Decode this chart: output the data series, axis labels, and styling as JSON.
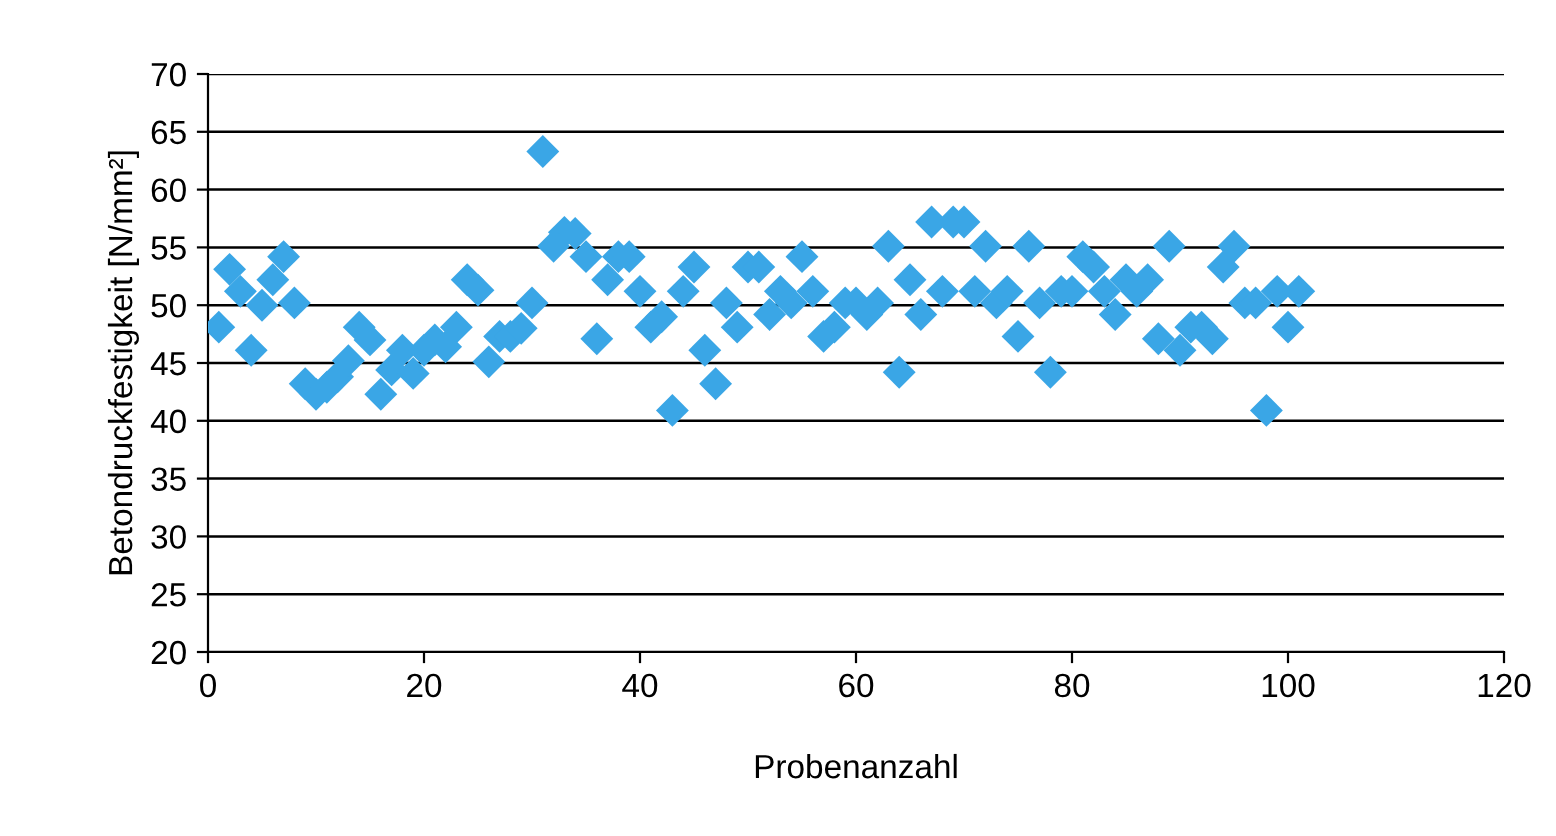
{
  "chart_data": {
    "type": "scatter",
    "xlabel": "Probenanzahl",
    "ylabel": "Betondruckfestigkeit [N/mm²]",
    "x": [
      1,
      2,
      3,
      4,
      5,
      6,
      7,
      8,
      9,
      10,
      11,
      12,
      13,
      14,
      15,
      16,
      17,
      18,
      19,
      20,
      21,
      22,
      23,
      24,
      25,
      26,
      27,
      28,
      29,
      30,
      31,
      32,
      33,
      34,
      35,
      36,
      37,
      38,
      39,
      40,
      41,
      42,
      43,
      44,
      45,
      46,
      47,
      48,
      49,
      50,
      51,
      52,
      53,
      54,
      55,
      56,
      57,
      58,
      59,
      60,
      61,
      62,
      63,
      64,
      65,
      66,
      67,
      68,
      69,
      70,
      71,
      72,
      73,
      74,
      75,
      76,
      77,
      78,
      79,
      80,
      81,
      82,
      83,
      84,
      85,
      86,
      87,
      88,
      89,
      90,
      91,
      92,
      93,
      94,
      95,
      96,
      97,
      98,
      99,
      100,
      101
    ],
    "series": [
      {
        "color": "#3aa6e6",
        "values": [
          48.1,
          53.1,
          51.2,
          46.1,
          50.0,
          52.2,
          54.2,
          50.2,
          43.2,
          42.3,
          42.9,
          43.8,
          45.2,
          48.1,
          47.0,
          42.3,
          44.4,
          46.1,
          44.1,
          46.1,
          47.0,
          46.4,
          48.1,
          52.2,
          51.3,
          45.1,
          47.3,
          47.3,
          48.0,
          50.2,
          63.3,
          55.1,
          56.3,
          56.2,
          54.2,
          47.1,
          52.2,
          54.2,
          54.2,
          51.2,
          48.1,
          49.0,
          40.9,
          51.2,
          53.3,
          46.1,
          43.2,
          50.2,
          48.1,
          53.3,
          53.3,
          49.2,
          51.2,
          50.2,
          54.2,
          51.2,
          47.3,
          48.1,
          50.2,
          50.2,
          49.2,
          50.2,
          55.1,
          44.2,
          52.2,
          49.2,
          57.2,
          51.2,
          57.2,
          57.2,
          51.2,
          55.1,
          50.2,
          51.2,
          47.3,
          55.1,
          50.2,
          44.2,
          51.2,
          51.2,
          54.2,
          53.3,
          51.2,
          49.2,
          52.2,
          51.2,
          52.2,
          47.1,
          55.1,
          46.1,
          48.1,
          48.1,
          47.1,
          53.3,
          55.1,
          50.2,
          50.2,
          40.9,
          51.2,
          48.1,
          51.2
        ]
      }
    ],
    "xlim": [
      0,
      120
    ],
    "xticks": [
      0,
      20,
      40,
      60,
      80,
      100,
      120
    ],
    "ylim": [
      20,
      70
    ],
    "yticks": [
      20,
      25,
      30,
      35,
      40,
      45,
      50,
      55,
      60,
      65,
      70
    ],
    "grid": "y",
    "marker": "diamond",
    "legend": false
  }
}
